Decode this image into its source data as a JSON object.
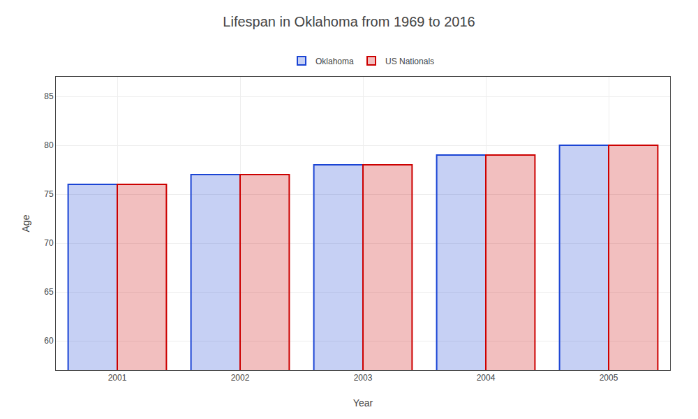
{
  "chart_data": {
    "type": "bar",
    "title": "Lifespan in Oklahoma from 1969 to 2016",
    "xlabel": "Year",
    "ylabel": "Age",
    "categories": [
      "2001",
      "2002",
      "2003",
      "2004",
      "2005"
    ],
    "series": [
      {
        "name": "Oklahoma",
        "color": "#1a44d4",
        "values": [
          76,
          77,
          78,
          79,
          80
        ]
      },
      {
        "name": "US Nationals",
        "color": "#cc0000",
        "values": [
          76,
          77,
          78,
          79,
          80
        ]
      }
    ],
    "ylim": [
      57,
      87
    ],
    "yticks": [
      60,
      65,
      70,
      75,
      80,
      85
    ],
    "grid": true,
    "legend": "top"
  }
}
